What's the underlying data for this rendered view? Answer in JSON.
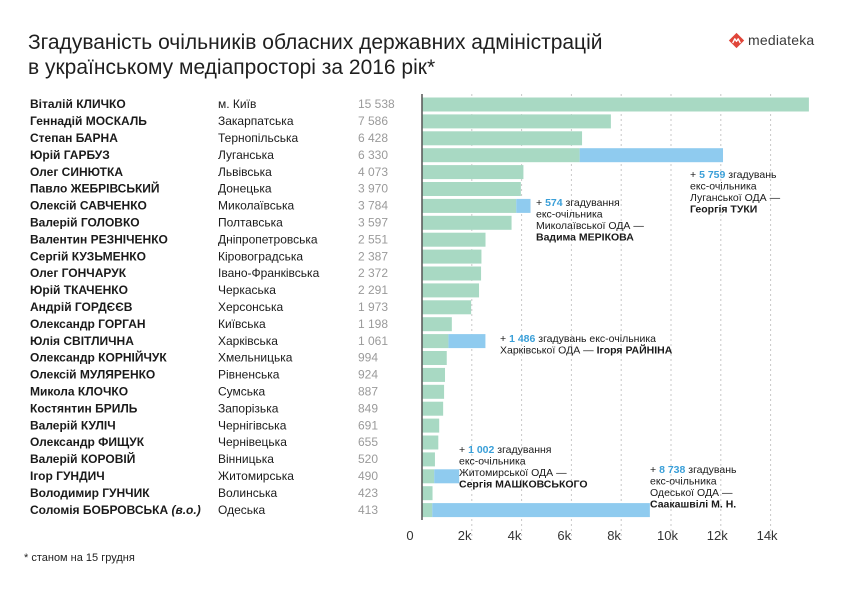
{
  "header": {
    "title_line1": "Згадуваність очільників обласних державних адміністрацій",
    "title_line2": "в українському медіапросторі за 2016 рік*",
    "logo_text": "mediateka"
  },
  "footnote": "* станом на 15 грудня",
  "colors": {
    "bar": "#a8d9c3",
    "former": "#8fcbef",
    "accent": "#3a9fd8",
    "logo_red": "#e0463a"
  },
  "chart_data": {
    "type": "bar",
    "orientation": "horizontal",
    "stacked": true,
    "xlim": [
      0,
      16000
    ],
    "ticks": [
      "0",
      "2k",
      "4k",
      "6k",
      "8k",
      "10k",
      "12k",
      "14k"
    ],
    "tick_values": [
      0,
      2000,
      4000,
      6000,
      8000,
      10000,
      12000,
      14000
    ],
    "rows": [
      {
        "name": "Віталій КЛИЧКО",
        "region": "м. Київ",
        "label": "15 538",
        "value": 15538,
        "former": 0
      },
      {
        "name": "Геннадій МОСКАЛЬ",
        "region": "Закарпатська",
        "label": "7 586",
        "value": 7586,
        "former": 0
      },
      {
        "name": "Степан БАРНА",
        "region": "Тернопільська",
        "label": "6 428",
        "value": 6428,
        "former": 0
      },
      {
        "name": "Юрій ГАРБУЗ",
        "region": "Луганська",
        "label": "6 330",
        "value": 6330,
        "former": 5759
      },
      {
        "name": "Олег СИНЮТКА",
        "region": "Львівська",
        "label": "4 073",
        "value": 4073,
        "former": 0
      },
      {
        "name": "Павло ЖЕБРІВСЬКИЙ",
        "region": "Донецька",
        "label": "3 970",
        "value": 3970,
        "former": 0
      },
      {
        "name": "Олексій САВЧЕНКО",
        "region": "Миколаївська",
        "label": "3 784",
        "value": 3784,
        "former": 574
      },
      {
        "name": "Валерій ГОЛОВКО",
        "region": "Полтавська",
        "label": "3 597",
        "value": 3597,
        "former": 0
      },
      {
        "name": "Валентин РЕЗНІЧЕНКО",
        "region": "Дніпропетровська",
        "label": "2 551",
        "value": 2551,
        "former": 0
      },
      {
        "name": "Сергій КУЗЬМЕНКО",
        "region": "Кіровоградська",
        "label": "2 387",
        "value": 2387,
        "former": 0
      },
      {
        "name": "Олег ГОНЧАРУК",
        "region": "Івано-Франківська",
        "label": "2 372",
        "value": 2372,
        "former": 0
      },
      {
        "name": "Юрій ТКАЧЕНКО",
        "region": "Черкаська",
        "label": "2 291",
        "value": 2291,
        "former": 0
      },
      {
        "name": "Андрій ГОРДЄЄВ",
        "region": "Херсонська",
        "label": "1 973",
        "value": 1973,
        "former": 0
      },
      {
        "name": "Олександр ГОРГАН",
        "region": "Київська",
        "label": "1 198",
        "value": 1198,
        "former": 0
      },
      {
        "name": "Юлія СВІТЛИЧНА",
        "region": "Харківська",
        "label": "1 061",
        "value": 1061,
        "former": 1486
      },
      {
        "name": "Олександр КОРНІЙЧУК",
        "region": "Хмельницька",
        "label": "994",
        "value": 994,
        "former": 0
      },
      {
        "name": "Олексій МУЛЯРЕНКО",
        "region": "Рівненська",
        "label": "924",
        "value": 924,
        "former": 0
      },
      {
        "name": "Микола КЛОЧКО",
        "region": "Сумська",
        "label": "887",
        "value": 887,
        "former": 0
      },
      {
        "name": "Костянтин БРИЛЬ",
        "region": "Запорізька",
        "label": "849",
        "value": 849,
        "former": 0
      },
      {
        "name": "Валерій КУЛІЧ",
        "region": "Чернігівська",
        "label": "691",
        "value": 691,
        "former": 0
      },
      {
        "name": "Олександр ФИЩУК",
        "region": "Чернівецька",
        "label": "655",
        "value": 655,
        "former": 0
      },
      {
        "name": "Валерій КОРОВІЙ",
        "region": "Вінницька",
        "label": "520",
        "value": 520,
        "former": 0
      },
      {
        "name": "Ігор ГУНДИЧ",
        "region": "Житомирська",
        "label": "490",
        "value": 490,
        "former": 1002
      },
      {
        "name": "Володимир ГУНЧИК",
        "region": "Волинська",
        "label": "423",
        "value": 423,
        "former": 0
      },
      {
        "name": "Соломія БОБРОВСЬКА",
        "name_suffix": "(в.о.)",
        "region": "Одеська",
        "label": "413",
        "value": 413,
        "former": 8738
      }
    ],
    "annotations": [
      {
        "row": 3,
        "lines": [
          [
            {
              "t": "+ "
            },
            {
              "t": "5 759",
              "num": true
            },
            {
              "t": " згадувань"
            }
          ],
          [
            {
              "t": "екс-очільника"
            }
          ],
          [
            {
              "t": "Луганської ОДА —"
            }
          ],
          [
            {
              "t": "Георгія ТУКИ",
              "bold": true
            }
          ]
        ]
      },
      {
        "row": 6,
        "lines": [
          [
            {
              "t": "+ "
            },
            {
              "t": "574",
              "num": true
            },
            {
              "t": " згадування"
            }
          ],
          [
            {
              "t": "екс-очільника"
            }
          ],
          [
            {
              "t": "Миколаївської ОДА —"
            }
          ],
          [
            {
              "t": "Вадима МЕРІКОВА",
              "bold": true
            }
          ]
        ]
      },
      {
        "row": 14,
        "lines": [
          [
            {
              "t": "+ "
            },
            {
              "t": "1 486",
              "num": true
            },
            {
              "t": " згадувань екс-очільника"
            }
          ],
          [
            {
              "t": "Харківської ОДА — "
            },
            {
              "t": "Ігоря РАЙНІНА",
              "bold": true
            }
          ]
        ]
      },
      {
        "row": 22,
        "lines": [
          [
            {
              "t": "+ "
            },
            {
              "t": "1 002",
              "num": true
            },
            {
              "t": " згадування"
            }
          ],
          [
            {
              "t": "екс-очільника"
            }
          ],
          [
            {
              "t": "Житомирської ОДА —"
            }
          ],
          [
            {
              "t": "Сергія МАШКОВСЬКОГО",
              "bold": true
            }
          ]
        ]
      },
      {
        "row": 24,
        "lines": [
          [
            {
              "t": "+ "
            },
            {
              "t": "8 738",
              "num": true
            },
            {
              "t": " згадувань"
            }
          ],
          [
            {
              "t": "екс-очільника"
            }
          ],
          [
            {
              "t": "Одеської ОДА —"
            }
          ],
          [
            {
              "t": "Саакашвілі М. Н.",
              "bold": true
            }
          ]
        ]
      }
    ]
  }
}
